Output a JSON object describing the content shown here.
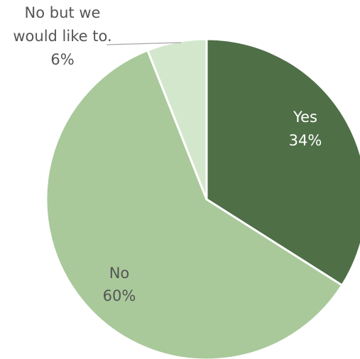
{
  "chart_data": {
    "type": "pie",
    "start_angle_deg": 0,
    "direction": "clockwise",
    "slices": [
      {
        "label": "Yes",
        "value": 34,
        "percent_label": "34%",
        "color": "#4f6f47",
        "label_color": "#ffffff"
      },
      {
        "label": "No",
        "value": 60,
        "percent_label": "60%",
        "color": "#a9c99b",
        "label_color": "#555555"
      },
      {
        "label": "No but we would like to.",
        "label_lines": [
          "No but we",
          "would like to."
        ],
        "value": 6,
        "percent_label": "6%",
        "color": "#d3e7cc",
        "label_color": "#555555",
        "label_outside": true
      }
    ],
    "title": "",
    "legend": "none"
  }
}
